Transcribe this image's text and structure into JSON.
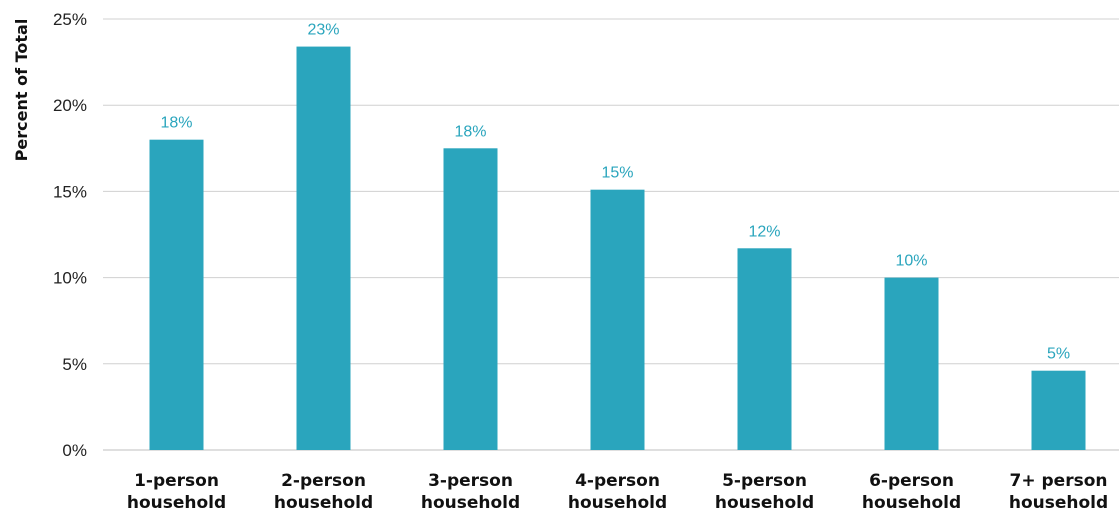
{
  "chart_data": {
    "type": "bar",
    "categories": [
      [
        "1-person",
        "household"
      ],
      [
        "2-person",
        "household"
      ],
      [
        "3-person",
        "household"
      ],
      [
        "4-person",
        "household"
      ],
      [
        "5-person",
        "household"
      ],
      [
        "6-person",
        "household"
      ],
      [
        "7+ person",
        "household"
      ]
    ],
    "values": [
      18.0,
      23.4,
      17.5,
      15.1,
      11.7,
      10.0,
      4.6
    ],
    "data_labels": [
      "18%",
      "23%",
      "18%",
      "15%",
      "12%",
      "10%",
      "5%"
    ],
    "title": "",
    "xlabel": "",
    "ylabel": "Percent of Total",
    "ylim": [
      0,
      25
    ],
    "yticks": [
      0,
      5,
      10,
      15,
      20,
      25
    ],
    "ytick_labels": [
      "0%",
      "5%",
      "10%",
      "15%",
      "20%",
      "25%"
    ],
    "grid": true,
    "legend": "none",
    "colors": {
      "bar": "#2aa5bd",
      "data_label": "#2aa5bd",
      "grid": "#d0d0d0",
      "axis": "#bfbfbf"
    }
  }
}
